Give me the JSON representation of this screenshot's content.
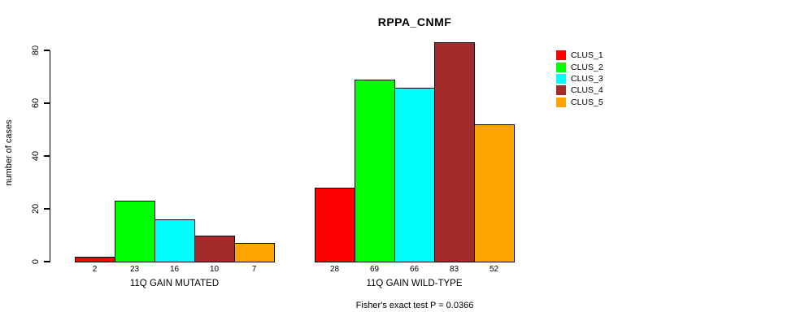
{
  "chart_data": {
    "type": "bar",
    "title": "RPPA_CNMF",
    "xlabel": "",
    "ylabel": "number of cases",
    "ylim": [
      0,
      80
    ],
    "yticks": [
      0,
      20,
      40,
      60,
      80
    ],
    "grid": false,
    "legend_position": "right",
    "categories": [
      "11Q GAIN MUTATED",
      "11Q GAIN WILD-TYPE"
    ],
    "series": [
      {
        "name": "CLUS_1",
        "color": "#ff0000",
        "values": [
          2,
          28
        ]
      },
      {
        "name": "CLUS_2",
        "color": "#00ff00",
        "values": [
          23,
          69
        ]
      },
      {
        "name": "CLUS_3",
        "color": "#00ffff",
        "values": [
          16,
          66
        ]
      },
      {
        "name": "CLUS_4",
        "color": "#a52a2a",
        "values": [
          10,
          83
        ]
      },
      {
        "name": "CLUS_5",
        "color": "#ffa500",
        "values": [
          7,
          52
        ]
      }
    ],
    "bar_value_labels": [
      [
        "2",
        "23",
        "16",
        "10",
        "7"
      ],
      [
        "28",
        "69",
        "66",
        "83",
        "52"
      ]
    ],
    "caption": "Fisher's exact test P = 0.0366"
  }
}
